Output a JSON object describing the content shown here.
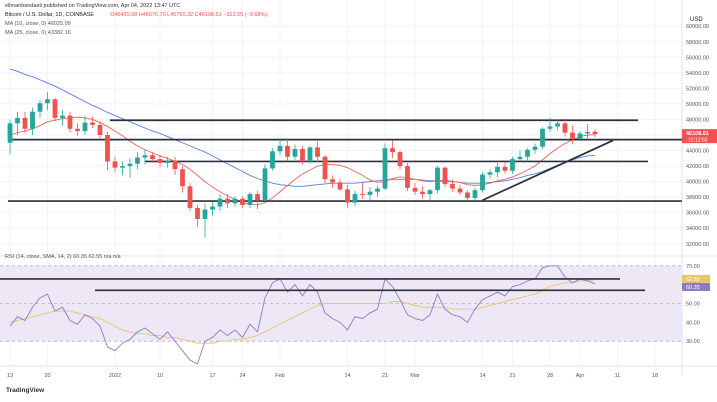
{
  "header": {
    "publisher": "ellmanbandaeli published on TradingView.com, Apr 04, 2022 13:47 UTC",
    "symbol": "Bitcoin / U.S. Dollar, 1D, COINBASE",
    "ohlc": "O46420.08 H46676.70 L45760.32 C46108.61 −313.55 (−0.68%)",
    "ma10": "MA (10, close, 0)  46025.09",
    "ma25": "MA (25, close, 0)  43382.16",
    "rsi": "RSI (14, close, SMA, 14, 2)  60.35  62.55  n/a  n/a",
    "currency": "USD",
    "footer": "TradingView"
  },
  "colors": {
    "up": "#26a69a",
    "down": "#ef5350",
    "ma10": "#e2655f",
    "ma25": "#5b7ee0",
    "rsi": "#8e7cc3",
    "rsi_ma": "#e8c46a",
    "rsi_band": "#ede7f6",
    "last_price_bg": "#ef5350",
    "trendline": "#2b2f3a"
  },
  "chart_data": [
    {
      "type": "line",
      "title": "Bitcoin / U.S. Dollar, 1D, COINBASE",
      "candles": [
        [
          45,
          48,
          43.5,
          47.5
        ],
        [
          47.5,
          49,
          46,
          48.2
        ],
        [
          48.2,
          49,
          46.3,
          46.8
        ],
        [
          46.8,
          49.5,
          46,
          49.0
        ],
        [
          49,
          50.5,
          48.2,
          50.1
        ],
        [
          50.1,
          51.5,
          49.2,
          50.6
        ],
        [
          50.6,
          50.8,
          47.8,
          48.2
        ],
        [
          48.2,
          49.2,
          47.2,
          48.5
        ],
        [
          48.5,
          49,
          46.3,
          46.8
        ],
        [
          46.8,
          47.5,
          45.9,
          46.5
        ],
        [
          46.5,
          48.5,
          46,
          47.6
        ],
        [
          47.6,
          48.4,
          46.9,
          47.3
        ],
        [
          47.3,
          47.8,
          45.6,
          46.0
        ],
        [
          46.0,
          46.4,
          41.5,
          42.6
        ],
        [
          42.6,
          43.2,
          41.2,
          41.8
        ],
        [
          41.8,
          42.6,
          40.8,
          42.0
        ],
        [
          42,
          43,
          40.5,
          42.3
        ],
        [
          42.3,
          43.8,
          41.6,
          43.1
        ],
        [
          43.1,
          44.2,
          42.2,
          43.4
        ],
        [
          43.4,
          43.8,
          42.4,
          42.9
        ],
        [
          42.9,
          43.4,
          41.9,
          42.4
        ],
        [
          42.4,
          43.2,
          41.8,
          42.7
        ],
        [
          42.7,
          43.2,
          40.9,
          41.6
        ],
        [
          41.6,
          42,
          38.6,
          39.4
        ],
        [
          39.4,
          39.8,
          36.2,
          36.6
        ],
        [
          36.6,
          37,
          34.2,
          35.2
        ],
        [
          35.2,
          37.2,
          32.8,
          36.4
        ],
        [
          36.4,
          37.4,
          35.6,
          36.8
        ],
        [
          36.8,
          38.4,
          36.2,
          37.8
        ],
        [
          37.8,
          38.4,
          36.6,
          37.2
        ],
        [
          37.2,
          38.1,
          36.8,
          37.8
        ],
        [
          37.8,
          38.1,
          36.6,
          37.0
        ],
        [
          37,
          38.7,
          36.6,
          38.4
        ],
        [
          38.4,
          38.8,
          36.5,
          37.6
        ],
        [
          37.6,
          42.2,
          37.3,
          41.7
        ],
        [
          41.7,
          44.3,
          41.4,
          43.9
        ],
        [
          43.9,
          45.6,
          43.4,
          44.6
        ],
        [
          44.6,
          45.6,
          42.6,
          43.2
        ],
        [
          43.2,
          44.8,
          42.8,
          44.2
        ],
        [
          44.2,
          44.6,
          42.2,
          42.6
        ],
        [
          42.6,
          44.6,
          42.3,
          44.4
        ],
        [
          44.4,
          45.2,
          42.5,
          43.2
        ],
        [
          43.2,
          43.4,
          39.8,
          40.3
        ],
        [
          40.3,
          40.8,
          39.2,
          39.9
        ],
        [
          39.9,
          40.4,
          38.8,
          39.0
        ],
        [
          39,
          39.6,
          36.6,
          37.3
        ],
        [
          37.3,
          38.8,
          36.8,
          38.4
        ],
        [
          38.4,
          39.9,
          37.8,
          38.3
        ],
        [
          38.3,
          39.3,
          37.6,
          38.7
        ],
        [
          38.7,
          39.5,
          38.0,
          39.1
        ],
        [
          39.1,
          44.9,
          38.9,
          44.3
        ],
        [
          44.3,
          45.3,
          43.0,
          43.8
        ],
        [
          43.8,
          44.0,
          41.6,
          42.0
        ],
        [
          42,
          42.4,
          38.8,
          39.2
        ],
        [
          39.2,
          39.8,
          38.3,
          38.7
        ],
        [
          38.7,
          39.4,
          37.8,
          38.4
        ],
        [
          38.4,
          39.1,
          37.6,
          38.9
        ],
        [
          38.9,
          42.0,
          38.5,
          41.8
        ],
        [
          41.8,
          41.9,
          39.3,
          39.7
        ],
        [
          39.7,
          40.3,
          38.7,
          39.1
        ],
        [
          39.1,
          39.6,
          38.3,
          38.6
        ],
        [
          38.6,
          38.9,
          37.6,
          37.9
        ],
        [
          37.9,
          39.2,
          37.5,
          38.9
        ],
        [
          38.9,
          41.2,
          38.6,
          40.9
        ],
        [
          40.9,
          41.6,
          40.4,
          41.2
        ],
        [
          41.2,
          42.4,
          40.6,
          41.9
        ],
        [
          41.9,
          42.5,
          41.0,
          41.4
        ],
        [
          41.4,
          43.2,
          41.0,
          42.9
        ],
        [
          42.9,
          44.0,
          42.6,
          43.2
        ],
        [
          43.2,
          44.3,
          42.6,
          44.1
        ],
        [
          44.1,
          44.9,
          43.6,
          44.5
        ],
        [
          44.5,
          47.0,
          44.2,
          46.8
        ],
        [
          46.8,
          48.2,
          46.4,
          47.1
        ],
        [
          47.1,
          48.0,
          46.6,
          47.5
        ],
        [
          47.5,
          48.1,
          45.8,
          46.3
        ],
        [
          46.3,
          47.2,
          44.8,
          45.5
        ],
        [
          45.5,
          46.5,
          45.2,
          46.2
        ],
        [
          46.2,
          47.4,
          45.4,
          46.4
        ],
        [
          46.42,
          46.68,
          45.76,
          46.11
        ]
      ],
      "ma10": [
        46,
        46.3,
        46.5,
        46.8,
        47.2,
        47.7,
        47.9,
        48.1,
        48.2,
        48.3,
        48.2,
        48.0,
        47.6,
        47.1,
        46.5,
        45.9,
        45.2,
        44.6,
        44.1,
        43.7,
        43.3,
        43.0,
        42.6,
        42.2,
        41.6,
        40.8,
        40.0,
        39.3,
        38.7,
        38.2,
        37.7,
        37.3,
        37.1,
        37.0,
        37.3,
        37.9,
        38.7,
        39.5,
        40.3,
        41.0,
        41.5,
        42.0,
        42.2,
        42.2,
        42.1,
        41.8,
        41.3,
        40.8,
        40.2,
        39.9,
        40.0,
        40.4,
        40.6,
        40.5,
        40.3,
        40.1,
        40.0,
        40.1,
        40.2,
        40.0,
        39.9,
        39.6,
        39.5,
        39.6,
        39.8,
        40.1,
        40.3,
        40.6,
        41.0,
        41.5,
        42.0,
        42.8,
        43.6,
        44.3,
        44.9,
        45.4,
        45.8,
        46.0,
        46.03
      ],
      "ma25": [
        54.5,
        54.2,
        53.8,
        53.5,
        53.1,
        52.7,
        52.3,
        51.8,
        51.3,
        50.8,
        50.3,
        49.8,
        49.4,
        48.9,
        48.5,
        48.1,
        47.7,
        47.3,
        46.9,
        46.5,
        46.2,
        45.8,
        45.4,
        45.0,
        44.6,
        44.2,
        43.8,
        43.3,
        42.8,
        42.3,
        41.8,
        41.3,
        40.8,
        40.4,
        40.1,
        39.8,
        39.6,
        39.5,
        39.4,
        39.4,
        39.5,
        39.6,
        39.7,
        39.8,
        39.8,
        39.8,
        39.8,
        39.9,
        40.0,
        40.1,
        40.2,
        40.3,
        40.3,
        40.3,
        40.3,
        40.2,
        40.1,
        40.1,
        40.0,
        40.0,
        39.9,
        39.8,
        39.8,
        39.8,
        39.9,
        40.0,
        40.1,
        40.3,
        40.5,
        40.8,
        41.0,
        41.3,
        41.7,
        42.1,
        42.5,
        42.8,
        43.1,
        43.3,
        43.38
      ],
      "horizontal_levels": [
        47.9,
        45.4,
        42.6,
        37.5
      ],
      "trendline": [
        [
          63,
          37.6
        ],
        [
          78,
          45.3
        ]
      ],
      "y_axis_labels": [
        "60000.00",
        "58000.00",
        "56000.00",
        "54000.00",
        "52000.00",
        "50000.00",
        "48000.00",
        "46000.00",
        "44000.00",
        "42000.00",
        "40000.00",
        "38000.00",
        "36000.00",
        "34000.00",
        "32000.00"
      ],
      "last_price": "46108.61",
      "countdown": "10:12:50",
      "x_tick_labels": [
        {
          "idx": 0,
          "label": "13"
        },
        {
          "idx": 5,
          "label": "20"
        },
        {
          "idx": 14,
          "label": "2022"
        },
        {
          "idx": 20,
          "label": "10"
        },
        {
          "idx": 27,
          "label": "17"
        },
        {
          "idx": 31,
          "label": "24"
        },
        {
          "idx": 36,
          "label": "Feb"
        },
        {
          "idx": 45,
          "label": "14"
        },
        {
          "idx": 50,
          "label": "21"
        },
        {
          "idx": 54,
          "label": "Mar"
        },
        {
          "idx": 63,
          "label": "14"
        },
        {
          "idx": 67,
          "label": "21"
        },
        {
          "idx": 72,
          "label": "28"
        },
        {
          "idx": 76,
          "label": "Apr"
        },
        {
          "idx": 81,
          "label": "11"
        },
        {
          "idx": 86,
          "label": "18"
        }
      ]
    },
    {
      "type": "line",
      "title": "RSI (14, close, SMA, 14, 2)",
      "rsi": [
        38,
        43,
        41,
        48,
        53,
        55,
        46,
        48,
        41,
        39,
        44,
        42,
        38,
        27,
        25,
        29,
        31,
        35,
        37,
        34,
        31,
        35,
        30,
        25,
        20,
        18,
        30,
        32,
        36,
        33,
        36,
        32,
        39,
        35,
        53,
        61,
        63,
        56,
        60,
        54,
        60,
        56,
        45,
        42,
        40,
        36,
        43,
        42,
        45,
        47,
        63,
        59,
        52,
        44,
        42,
        41,
        44,
        55,
        47,
        44,
        43,
        40,
        47,
        52,
        54,
        56,
        54,
        59,
        60,
        62,
        63,
        69,
        70,
        70,
        64,
        61,
        63,
        62,
        60.35
      ],
      "rsi_ma": [
        40,
        41,
        42,
        43,
        44,
        45,
        46,
        46,
        46,
        45,
        44,
        43,
        42,
        40,
        38,
        36,
        35,
        34,
        34,
        33,
        33,
        32,
        32,
        31,
        30,
        29,
        29,
        29,
        30,
        30,
        31,
        31,
        32,
        33,
        35,
        37,
        39,
        41,
        43,
        45,
        47,
        49,
        50,
        50,
        50,
        50,
        50,
        50,
        50,
        50,
        50,
        51,
        51,
        50,
        49,
        48,
        48,
        48,
        48,
        47,
        47,
        47,
        47,
        48,
        49,
        50,
        51,
        52,
        53,
        54,
        55,
        57,
        59,
        60,
        61,
        61,
        62,
        62,
        62.55
      ],
      "levels": [
        70,
        50,
        30
      ],
      "y_axis_labels": [
        "70.00",
        "60.00",
        "50.00",
        "40.00",
        "30.00"
      ],
      "horizontal_lines": [
        63,
        57
      ],
      "last_rsi": "60.35",
      "last_rsi_ma": "62.55"
    }
  ]
}
